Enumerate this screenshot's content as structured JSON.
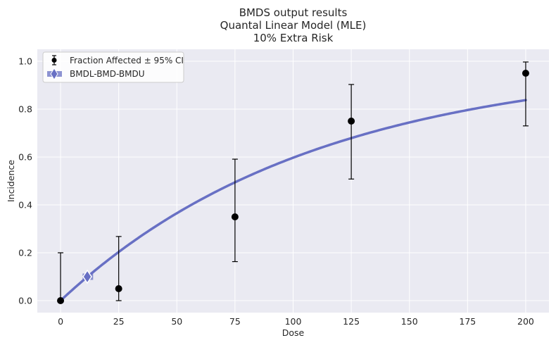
{
  "chart_data": {
    "type": "scatter",
    "title_lines": [
      "BMDS output results",
      "Quantal Linear Model (MLE)",
      "10% Extra Risk"
    ],
    "xlabel": "Dose",
    "ylabel": "Incidence",
    "xlim": [
      -10,
      210
    ],
    "ylim": [
      -0.05,
      1.05
    ],
    "x_ticks": [
      0,
      25,
      50,
      75,
      100,
      125,
      150,
      175,
      200
    ],
    "y_ticks": [
      0.0,
      0.2,
      0.4,
      0.6,
      0.8,
      1.0
    ],
    "y_tick_labels": [
      "0.0",
      "0.2",
      "0.4",
      "0.6",
      "0.8",
      "1.0"
    ],
    "grid": true,
    "legend_position": "top-left",
    "series": [
      {
        "name": "Fraction Affected ± 95% CI",
        "color": "#000000",
        "points": [
          {
            "x": 0,
            "y": 0.0,
            "lower": 0.0,
            "upper": 0.2
          },
          {
            "x": 25,
            "y": 0.05,
            "lower": 0.0,
            "upper": 0.268
          },
          {
            "x": 75,
            "y": 0.35,
            "lower": 0.163,
            "upper": 0.591
          },
          {
            "x": 125,
            "y": 0.75,
            "lower": 0.508,
            "upper": 0.903
          },
          {
            "x": 200,
            "y": 0.95,
            "lower": 0.73,
            "upper": 0.997
          }
        ]
      },
      {
        "name": "BMDL-BMD-BMDU",
        "color": "#6870c4",
        "bmdl": 9.5,
        "bmd": 11.5,
        "bmdu": 14.0,
        "bmr": 0.1
      }
    ],
    "model_curve": {
      "color": "#6870c4",
      "background": 0.0,
      "slope": 0.00909,
      "x_range": [
        0,
        200
      ]
    }
  }
}
